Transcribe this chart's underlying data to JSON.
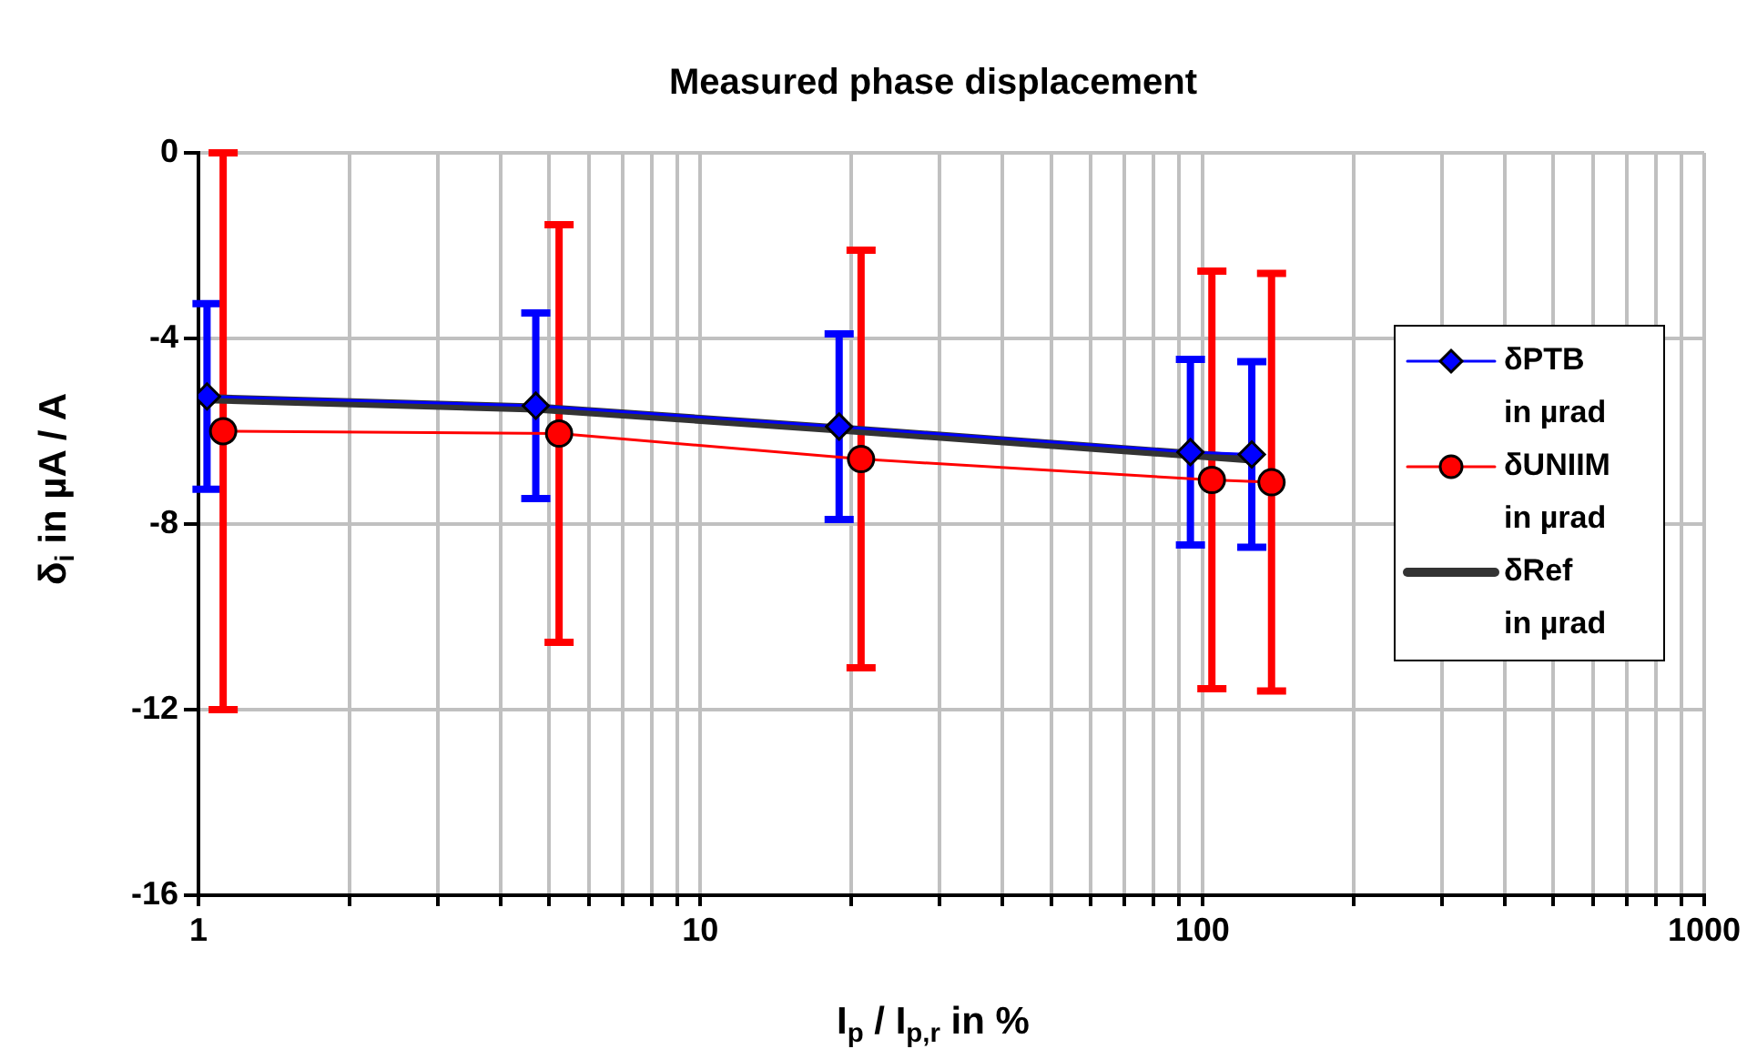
{
  "chart_data": {
    "type": "line",
    "title": "Measured phase displacement",
    "xlabel": "I$_{p}$ / I$_{p,r}$ in %",
    "ylabel": "δ$_{i}$ in µA / A",
    "log": "x",
    "xlim": [
      1,
      1000
    ],
    "xticks": [
      1,
      {
        "value": 2,
        "label": null
      },
      {
        "value": 3,
        "label": null
      },
      {
        "value": 4,
        "label": null
      },
      {
        "value": 5,
        "label": null
      },
      {
        "value": 6,
        "label": null
      },
      {
        "value": 7,
        "label": null
      },
      {
        "value": 8,
        "label": null
      },
      {
        "value": 9,
        "label": null
      },
      10,
      {
        "value": 20,
        "label": null
      },
      {
        "value": 30,
        "label": null
      },
      {
        "value": 40,
        "label": null
      },
      {
        "value": 50,
        "label": null
      },
      {
        "value": 60,
        "label": null
      },
      {
        "value": 70,
        "label": null
      },
      {
        "value": 80,
        "label": null
      },
      {
        "value": 90,
        "label": null
      },
      100,
      {
        "value": 200,
        "label": null
      },
      {
        "value": 300,
        "label": null
      },
      {
        "value": 400,
        "label": null
      },
      {
        "value": 500,
        "label": null
      },
      {
        "value": 600,
        "label": null
      },
      {
        "value": 700,
        "label": null
      },
      {
        "value": 800,
        "label": null
      },
      {
        "value": 900,
        "label": null
      },
      1000
    ],
    "ylim": [
      -16,
      0
    ],
    "yticks": [
      -16,
      -12,
      -8,
      -4,
      0
    ],
    "grid": true,
    "legend": "right",
    "line_style": "solid",
    "series": [
      {
        "name": "δPTB in µrad",
        "color": "#0000ff",
        "marker": "diamond",
        "x": [
          1.04,
          4.7,
          18.9,
          94.7,
          125.5
        ],
        "values": [
          -5.25,
          -5.45,
          -5.9,
          -6.45,
          -6.5
        ],
        "errors": [
          2,
          2,
          2,
          2,
          2
        ]
      },
      {
        "name": "δUNIIM in µrad",
        "color": "#ff0000",
        "marker": "circle",
        "x": [
          1.12,
          5.23,
          20.9,
          104.5,
          137.4
        ],
        "values": [
          -6.0,
          -6.05,
          -6.6,
          -7.05,
          -7.1
        ],
        "errors": [
          6,
          4.5,
          4.5,
          4.5,
          4.5
        ]
      },
      {
        "name": "δRef in µrad",
        "color": "#333333",
        "marker": "none",
        "x": [
          1.04,
          4.7,
          18.9,
          94.7,
          125.5
        ],
        "values": [
          -5.3,
          -5.5,
          -5.95,
          -6.5,
          -6.6
        ]
      }
    ]
  }
}
